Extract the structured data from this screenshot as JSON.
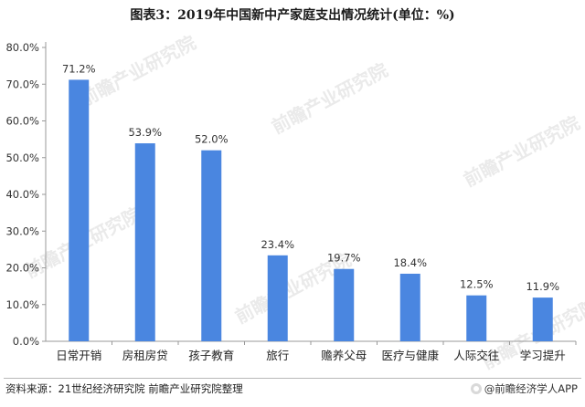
{
  "title": "图表3：2019年中国新中产家庭支出情况统计(单位：%)",
  "footer": {
    "source": "资料来源：21世纪经济研究院 前瞻产业研究院整理",
    "brand": "@前瞻经济学人APP"
  },
  "watermark": "前瞻产业研究院",
  "colors": {
    "bar": "#4a86e0",
    "axis": "#999999"
  },
  "chart_data": {
    "type": "bar",
    "title": "图表3：2019年中国新中产家庭支出情况统计(单位：%)",
    "xlabel": "",
    "ylabel": "",
    "categories": [
      "日常开销",
      "房租房贷",
      "孩子教育",
      "旅行",
      "赡养父母",
      "医疗与健康",
      "人际交往",
      "学习提升"
    ],
    "values": [
      71.2,
      53.9,
      52.0,
      23.4,
      19.7,
      18.4,
      12.5,
      11.9
    ],
    "data_labels": [
      "71.2%",
      "53.9%",
      "52.0%",
      "23.4%",
      "19.7%",
      "18.4%",
      "12.5%",
      "11.9%"
    ],
    "yticks": [
      "0.0%",
      "10.0%",
      "20.0%",
      "30.0%",
      "40.0%",
      "50.0%",
      "60.0%",
      "70.0%",
      "80.0%"
    ],
    "ylim": [
      0,
      80
    ],
    "grid": false,
    "legend": "none"
  }
}
